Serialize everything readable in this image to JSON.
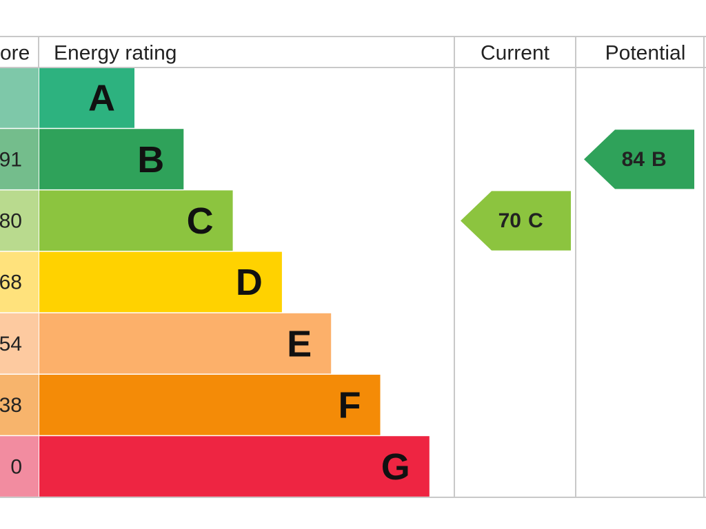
{
  "header": {
    "score": "ore",
    "rating": "Energy rating",
    "current": "Current",
    "potential": "Potential"
  },
  "bands": [
    {
      "letter": "A",
      "color": "#2db27f",
      "score_color": "#7ec8a9"
    },
    {
      "letter": "B",
      "score": "91",
      "color": "#2fa25a",
      "score_color": "#74bd8c"
    },
    {
      "letter": "C",
      "score": "80",
      "color": "#8cc43f",
      "score_color": "#b9da8e"
    },
    {
      "letter": "D",
      "score": "68",
      "color": "#ffd200",
      "score_color": "#ffe27c"
    },
    {
      "letter": "E",
      "score": "54",
      "color": "#fcb06a",
      "score_color": "#fdcaa0"
    },
    {
      "letter": "F",
      "score": "38",
      "color": "#f48b07",
      "score_color": "#f7b46c"
    },
    {
      "letter": "G",
      "score": "0",
      "color": "#ee2542",
      "score_color": "#f28ca0"
    }
  ],
  "current": {
    "value": "70",
    "band": "C"
  },
  "potential": {
    "value": "84",
    "band": "B"
  }
}
